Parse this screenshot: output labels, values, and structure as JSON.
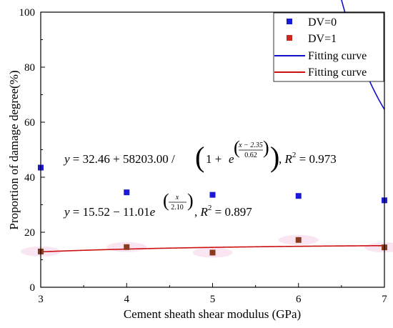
{
  "chart_data": {
    "type": "scatter",
    "xlabel": "Cement sheath shear modulus (GPa)",
    "ylabel": "Proportion of damage degree(%)",
    "xlim": [
      3,
      7
    ],
    "ylim": [
      0,
      100
    ],
    "x_ticks": [
      3,
      4,
      5,
      6,
      7
    ],
    "y_ticks": [
      0,
      20,
      40,
      60,
      80,
      100
    ],
    "legend_position": "top-right",
    "series": [
      {
        "name": "DV=0",
        "kind": "points",
        "color": "#1a1ad6",
        "x": [
          3,
          4,
          5,
          6,
          7
        ],
        "y": [
          43.5,
          34.5,
          33.6,
          33.2,
          31.6
        ]
      },
      {
        "name": "DV=1",
        "kind": "points",
        "color": "#c8281e",
        "marker_color": "#8b3a1e",
        "x": [
          3,
          4,
          5,
          6,
          7
        ],
        "y": [
          13.0,
          14.6,
          12.6,
          17.2,
          14.5
        ]
      },
      {
        "name": "Fitting curve",
        "kind": "fit",
        "color": "#1010c8",
        "model": "logistic",
        "params": {
          "a": 32.46,
          "b": 58203.0,
          "x0": 2.35,
          "w": 0.62
        }
      },
      {
        "name": "Fitting curve",
        "kind": "fit",
        "color": "#cc1010",
        "model": "exponential",
        "params": {
          "a": 15.52,
          "b": -11.01,
          "t": 2.1
        }
      }
    ],
    "annotations": {
      "eq1": {
        "y": "y",
        "a": " = 32.46 + 58203.00 / ",
        "one_plus": "1 + ",
        "e": "e",
        "exp_num": "x − 2.35",
        "exp_den": "0.62",
        "r2_label": "R",
        "r2_sup": "2",
        "r2_val": " = 0.973"
      },
      "eq2": {
        "y": "y",
        "a": " = 15.52 − 11.01",
        "e": "e",
        "exp_num": "x",
        "exp_den": "2.10",
        "r2_label": "R",
        "r2_sup": "2",
        "r2_val": " = 0.897"
      }
    }
  }
}
